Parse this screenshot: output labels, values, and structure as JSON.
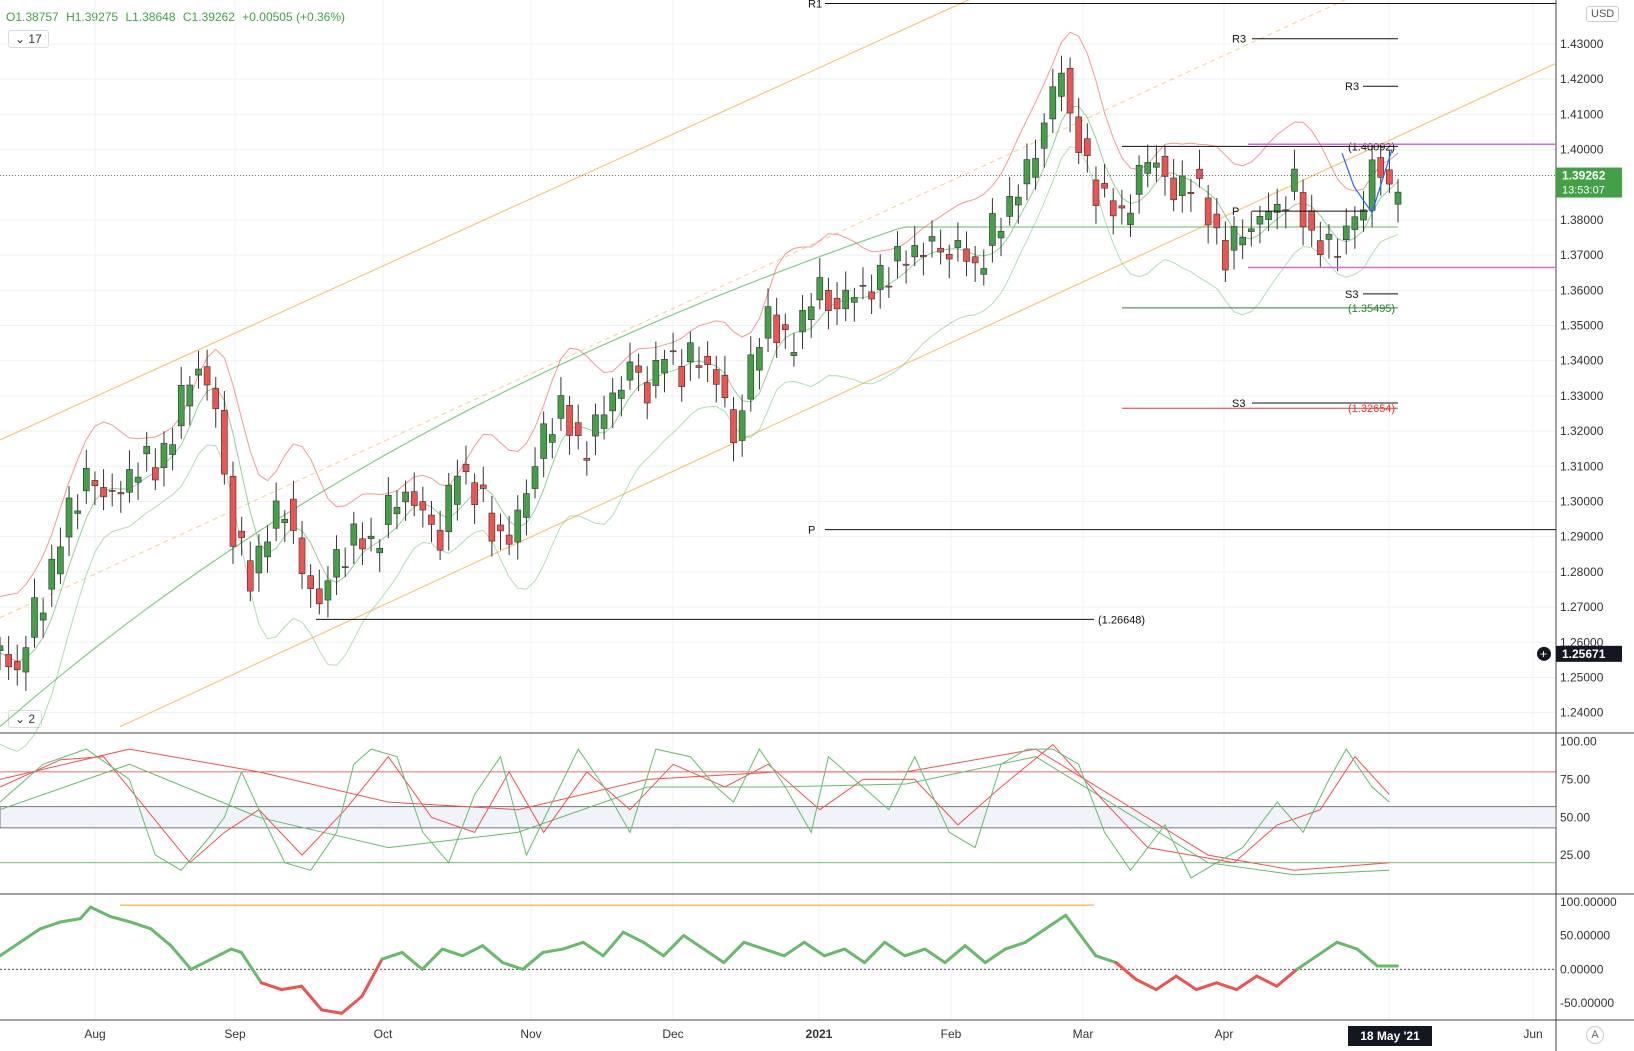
{
  "header": {
    "open": "O1.38757",
    "high": "H1.39275",
    "low": "L1.38648",
    "close": "C1.39262",
    "change": "+0.00505 (+0.36%)",
    "interval_button": "17",
    "osc1_button": "2",
    "currency_button": "USD",
    "auto_button": "A"
  },
  "colors": {
    "up": "#43a047",
    "down": "#ef5350",
    "grid": "#eef0f3",
    "channel": "#f5b041",
    "band": "#ef5350",
    "ma": "#66bb6a",
    "magenta": "#d46ad4",
    "blue": "#2962ff"
  },
  "chart_data": [
    {
      "type": "candlestick",
      "symbol_currency": "USD",
      "y_ticks": [
        "1.43000",
        "1.42000",
        "1.41000",
        "1.40000",
        "1.38000",
        "1.37000",
        "1.36000",
        "1.35000",
        "1.34000",
        "1.33000",
        "1.32000",
        "1.31000",
        "1.30000",
        "1.29000",
        "1.28000",
        "1.27000",
        "1.26000",
        "1.25000",
        "1.24000"
      ],
      "ylim": [
        1.2345,
        1.4425
      ],
      "x_ticks": [
        "Aug",
        "Sep",
        "Oct",
        "Nov",
        "Dec",
        "2021",
        "Feb",
        "Mar",
        "Apr",
        "May",
        "Jun"
      ],
      "crosshair_date": "18 May '21",
      "last_price": "1.39262",
      "countdown": "13:53:07",
      "crosshair_price": "1.25671",
      "close_path": [
        [
          0,
          1.257
        ],
        [
          4,
          1.252
        ],
        [
          8,
          1.268
        ],
        [
          12,
          1.28
        ],
        [
          16,
          1.298
        ],
        [
          20,
          1.306
        ],
        [
          24,
          1.303
        ],
        [
          28,
          1.302
        ],
        [
          32,
          1.312
        ],
        [
          36,
          1.309
        ],
        [
          40,
          1.32
        ],
        [
          44,
          1.336
        ],
        [
          46,
          1.338
        ],
        [
          50,
          1.326
        ],
        [
          54,
          1.29
        ],
        [
          58,
          1.279
        ],
        [
          62,
          1.291
        ],
        [
          66,
          1.3
        ],
        [
          70,
          1.279
        ],
        [
          74,
          1.272
        ],
        [
          78,
          1.283
        ],
        [
          82,
          1.29
        ],
        [
          86,
          1.287
        ],
        [
          90,
          1.297
        ],
        [
          94,
          1.303
        ],
        [
          98,
          1.296
        ],
        [
          102,
          1.29
        ],
        [
          106,
          1.31
        ],
        [
          110,
          1.303
        ],
        [
          114,
          1.293
        ],
        [
          118,
          1.288
        ],
        [
          122,
          1.304
        ],
        [
          126,
          1.318
        ],
        [
          130,
          1.328
        ],
        [
          134,
          1.314
        ],
        [
          138,
          1.321
        ],
        [
          142,
          1.33
        ],
        [
          146,
          1.338
        ],
        [
          150,
          1.332
        ],
        [
          154,
          1.342
        ],
        [
          158,
          1.338
        ],
        [
          162,
          1.341
        ],
        [
          166,
          1.335
        ],
        [
          170,
          1.318
        ],
        [
          174,
          1.338
        ],
        [
          178,
          1.354
        ],
        [
          182,
          1.343
        ],
        [
          186,
          1.352
        ],
        [
          190,
          1.361
        ],
        [
          194,
          1.354
        ],
        [
          198,
          1.361
        ],
        [
          202,
          1.359
        ],
        [
          206,
          1.367
        ],
        [
          210,
          1.369
        ],
        [
          214,
          1.373
        ],
        [
          218,
          1.371
        ],
        [
          222,
          1.372
        ],
        [
          226,
          1.366
        ],
        [
          230,
          1.376
        ],
        [
          234,
          1.385
        ],
        [
          238,
          1.393
        ],
        [
          242,
          1.408
        ],
        [
          246,
          1.423
        ],
        [
          248,
          1.41
        ],
        [
          252,
          1.393
        ],
        [
          256,
          1.386
        ],
        [
          260,
          1.38
        ],
        [
          264,
          1.393
        ],
        [
          268,
          1.398
        ],
        [
          272,
          1.386
        ],
        [
          276,
          1.393
        ],
        [
          280,
          1.381
        ],
        [
          284,
          1.37
        ],
        [
          288,
          1.377
        ],
        [
          292,
          1.38
        ],
        [
          296,
          1.384
        ],
        [
          300,
          1.389
        ],
        [
          304,
          1.375
        ],
        [
          308,
          1.371
        ],
        [
          312,
          1.377
        ],
        [
          316,
          1.383
        ],
        [
          318,
          1.398
        ],
        [
          320,
          1.393
        ],
        [
          322,
          1.386
        ],
        [
          324,
          1.393
        ]
      ],
      "horizontal_levels": [
        {
          "label": "R1",
          "price": 1.4415
        },
        {
          "label": "R3",
          "price": 1.4315
        },
        {
          "label": "R3",
          "price": 1.418
        },
        {
          "label": "P",
          "price": 1.292
        },
        {
          "label": "(1.40092)",
          "price": 1.4009
        },
        {
          "label": "P",
          "price": 1.3825
        },
        {
          "label": "S3",
          "price": 1.359
        },
        {
          "label": "(1.35495)",
          "price": 1.355
        },
        {
          "label": "S3",
          "price": 1.328
        },
        {
          "label": "(1.32654)",
          "price": 1.3265
        },
        {
          "label": "(1.26648)",
          "price": 1.2665
        }
      ],
      "magenta_levels": [
        1.4015,
        1.3665
      ]
    },
    {
      "type": "line",
      "name": "stochastic",
      "y_ticks": [
        "100.00",
        "75.00",
        "50.00",
        "25.00"
      ],
      "ylim": [
        0,
        105
      ],
      "levels": [
        80,
        50,
        20
      ],
      "k": [
        [
          0,
          60
        ],
        [
          10,
          85
        ],
        [
          20,
          95
        ],
        [
          30,
          75
        ],
        [
          36,
          25
        ],
        [
          42,
          15
        ],
        [
          48,
          35
        ],
        [
          52,
          50
        ],
        [
          56,
          80
        ],
        [
          60,
          55
        ],
        [
          66,
          20
        ],
        [
          72,
          15
        ],
        [
          78,
          40
        ],
        [
          82,
          85
        ],
        [
          86,
          95
        ],
        [
          92,
          90
        ],
        [
          98,
          40
        ],
        [
          104,
          20
        ],
        [
          110,
          65
        ],
        [
          116,
          90
        ],
        [
          122,
          25
        ],
        [
          128,
          60
        ],
        [
          134,
          95
        ],
        [
          140,
          70
        ],
        [
          146,
          40
        ],
        [
          152,
          95
        ],
        [
          160,
          90
        ],
        [
          166,
          70
        ],
        [
          170,
          60
        ],
        [
          176,
          95
        ],
        [
          182,
          70
        ],
        [
          188,
          40
        ],
        [
          192,
          90
        ],
        [
          200,
          70
        ],
        [
          206,
          55
        ],
        [
          212,
          90
        ],
        [
          220,
          40
        ],
        [
          226,
          30
        ],
        [
          232,
          85
        ],
        [
          238,
          95
        ],
        [
          244,
          95
        ],
        [
          250,
          85
        ],
        [
          256,
          40
        ],
        [
          262,
          15
        ],
        [
          270,
          45
        ],
        [
          276,
          10
        ],
        [
          282,
          20
        ],
        [
          288,
          30
        ],
        [
          296,
          60
        ],
        [
          302,
          40
        ],
        [
          308,
          75
        ],
        [
          312,
          95
        ],
        [
          318,
          70
        ],
        [
          322,
          60
        ]
      ],
      "d": [
        [
          0,
          70
        ],
        [
          14,
          88
        ],
        [
          24,
          90
        ],
        [
          34,
          55
        ],
        [
          44,
          20
        ],
        [
          52,
          40
        ],
        [
          60,
          55
        ],
        [
          70,
          25
        ],
        [
          80,
          55
        ],
        [
          90,
          90
        ],
        [
          100,
          50
        ],
        [
          110,
          40
        ],
        [
          118,
          80
        ],
        [
          126,
          40
        ],
        [
          136,
          80
        ],
        [
          146,
          55
        ],
        [
          156,
          85
        ],
        [
          168,
          70
        ],
        [
          178,
          85
        ],
        [
          190,
          55
        ],
        [
          200,
          75
        ],
        [
          212,
          75
        ],
        [
          222,
          45
        ],
        [
          232,
          70
        ],
        [
          244,
          98
        ],
        [
          256,
          60
        ],
        [
          266,
          30
        ],
        [
          276,
          25
        ],
        [
          286,
          20
        ],
        [
          296,
          45
        ],
        [
          306,
          55
        ],
        [
          314,
          90
        ],
        [
          322,
          65
        ]
      ],
      "slow1": [
        [
          0,
          75
        ],
        [
          30,
          95
        ],
        [
          60,
          80
        ],
        [
          90,
          60
        ],
        [
          120,
          55
        ],
        [
          150,
          75
        ],
        [
          180,
          80
        ],
        [
          210,
          80
        ],
        [
          240,
          95
        ],
        [
          260,
          60
        ],
        [
          280,
          25
        ],
        [
          300,
          15
        ],
        [
          322,
          20
        ]
      ],
      "slow2": [
        [
          0,
          55
        ],
        [
          30,
          85
        ],
        [
          60,
          50
        ],
        [
          90,
          30
        ],
        [
          120,
          40
        ],
        [
          150,
          70
        ],
        [
          180,
          70
        ],
        [
          210,
          72
        ],
        [
          240,
          90
        ],
        [
          260,
          55
        ],
        [
          280,
          20
        ],
        [
          300,
          12
        ],
        [
          322,
          15
        ]
      ]
    },
    {
      "type": "line",
      "name": "momentum",
      "y_ticks": [
        "100.00000",
        "50.00000",
        "0.00000",
        "-50.00000"
      ],
      "ylim": [
        -75,
        110
      ],
      "zero_line": 0,
      "resistance_line": 95,
      "values": [
        [
          0,
          20
        ],
        [
          4,
          40
        ],
        [
          8,
          60
        ],
        [
          12,
          70
        ],
        [
          16,
          75
        ],
        [
          18,
          92
        ],
        [
          22,
          78
        ],
        [
          26,
          70
        ],
        [
          30,
          60
        ],
        [
          34,
          35
        ],
        [
          38,
          0
        ],
        [
          42,
          15
        ],
        [
          46,
          30
        ],
        [
          48,
          25
        ],
        [
          52,
          -20
        ],
        [
          56,
          -30
        ],
        [
          60,
          -25
        ],
        [
          64,
          -60
        ],
        [
          68,
          -65
        ],
        [
          72,
          -40
        ],
        [
          76,
          15
        ],
        [
          80,
          25
        ],
        [
          84,
          0
        ],
        [
          88,
          30
        ],
        [
          92,
          20
        ],
        [
          96,
          35
        ],
        [
          100,
          10
        ],
        [
          104,
          0
        ],
        [
          108,
          25
        ],
        [
          112,
          30
        ],
        [
          116,
          40
        ],
        [
          120,
          20
        ],
        [
          124,
          55
        ],
        [
          128,
          40
        ],
        [
          132,
          20
        ],
        [
          136,
          50
        ],
        [
          140,
          30
        ],
        [
          144,
          10
        ],
        [
          148,
          40
        ],
        [
          152,
          30
        ],
        [
          156,
          20
        ],
        [
          160,
          40
        ],
        [
          164,
          20
        ],
        [
          168,
          30
        ],
        [
          172,
          10
        ],
        [
          176,
          40
        ],
        [
          180,
          20
        ],
        [
          184,
          30
        ],
        [
          188,
          10
        ],
        [
          192,
          35
        ],
        [
          196,
          10
        ],
        [
          200,
          30
        ],
        [
          204,
          40
        ],
        [
          208,
          60
        ],
        [
          212,
          80
        ],
        [
          214,
          60
        ],
        [
          218,
          20
        ],
        [
          222,
          10
        ],
        [
          226,
          -15
        ],
        [
          230,
          -30
        ],
        [
          234,
          -10
        ],
        [
          238,
          -30
        ],
        [
          242,
          -20
        ],
        [
          246,
          -30
        ],
        [
          250,
          -10
        ],
        [
          254,
          -25
        ],
        [
          258,
          0
        ],
        [
          262,
          20
        ],
        [
          266,
          40
        ],
        [
          270,
          30
        ],
        [
          274,
          5
        ],
        [
          278,
          5
        ]
      ]
    }
  ]
}
